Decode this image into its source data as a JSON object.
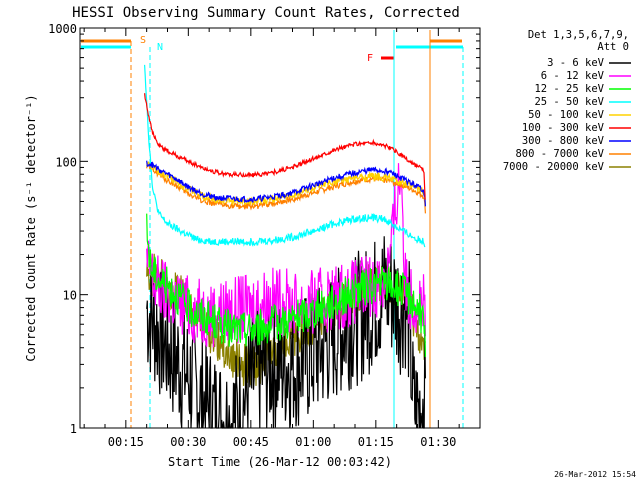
{
  "chart_data": {
    "type": "line",
    "title": "HESSI Observing Summary Count Rates, Corrected",
    "xlabel": "Start Time (26-Mar-12 00:03:42)",
    "ylabel": "Corrected Count Rate (s⁻¹ detector⁻¹)",
    "y_scale": "log",
    "ylim": [
      1,
      1000
    ],
    "xlim_min": [
      4,
      100
    ],
    "x_ticks": [
      {
        "min": 15,
        "label": "00:15"
      },
      {
        "min": 30,
        "label": "00:30"
      },
      {
        "min": 45,
        "label": "00:45"
      },
      {
        "min": 60,
        "label": "01:00"
      },
      {
        "min": 75,
        "label": "01:15"
      },
      {
        "min": 90,
        "label": "01:30"
      }
    ],
    "y_ticks": [
      {
        "v": 1,
        "label": "1"
      },
      {
        "v": 10,
        "label": "10"
      },
      {
        "v": 100,
        "label": "100"
      },
      {
        "v": 1000,
        "label": "1000"
      }
    ],
    "legend_header": [
      "Det 1,3,5,6,7,9,",
      "Att 0"
    ],
    "series": [
      {
        "name": "3 - 6 keV",
        "color": "#000000",
        "x": [
          20,
          22,
          25,
          28,
          31,
          34,
          37,
          40,
          43,
          46,
          50,
          55,
          60,
          64,
          68,
          72,
          75,
          77,
          79,
          81,
          82,
          83,
          84,
          85,
          86,
          87
        ],
        "y": [
          8,
          6,
          4,
          3,
          2.2,
          1.5,
          1.2,
          1.1,
          1.5,
          2.5,
          3,
          3,
          3.5,
          4.5,
          6,
          7,
          9,
          11,
          10,
          8,
          9,
          6,
          1.5,
          1.3,
          1.5,
          1.8
        ]
      },
      {
        "name": "6 - 12 keV",
        "color": "#ff00ff",
        "x": [
          20,
          22,
          25,
          28,
          32,
          36,
          40,
          44,
          48,
          52,
          56,
          60,
          64,
          68,
          72,
          75,
          77,
          78.5,
          79.5,
          80.5,
          81.2,
          82,
          83,
          85,
          86.5,
          87
        ],
        "y": [
          17,
          12,
          10,
          8.5,
          7.5,
          7.2,
          7.5,
          8,
          9,
          9,
          8.5,
          8.5,
          9.5,
          10,
          11,
          12,
          13,
          20,
          40,
          70,
          75,
          12,
          10,
          9,
          8.5,
          4
        ]
      },
      {
        "name": "12 - 25 keV",
        "color": "#00ff00",
        "x": [
          20,
          21,
          23,
          26,
          30,
          35,
          40,
          45,
          50,
          55,
          60,
          65,
          70,
          75,
          78,
          81,
          84,
          86.5,
          87
        ],
        "y": [
          30,
          16,
          13,
          11,
          8,
          6.5,
          5.5,
          5.5,
          6,
          6.5,
          7.5,
          9,
          10.5,
          12,
          12,
          11,
          9,
          6.5,
          3
        ]
      },
      {
        "name": "25 - 50 keV",
        "color": "#00ffff",
        "x": [
          19.5,
          20.5,
          21.5,
          23,
          25,
          28,
          32,
          36,
          40,
          45,
          50,
          55,
          60,
          65,
          70,
          74,
          77,
          80,
          84,
          86.5,
          87
        ],
        "y": [
          550,
          150,
          60,
          40,
          34,
          30,
          26,
          25,
          25,
          25,
          25.5,
          27,
          30,
          34,
          37,
          38,
          37,
          32,
          27,
          25,
          23
        ]
      },
      {
        "name": "50 - 100 keV",
        "color": "#ffd200",
        "x": [
          20,
          21.5,
          24,
          27,
          30,
          34,
          38,
          42,
          46,
          50,
          55,
          60,
          65,
          70,
          74,
          78,
          81,
          84,
          86.5,
          87
        ],
        "y": [
          95,
          90,
          80,
          72,
          62,
          54,
          51,
          50,
          50,
          52,
          56,
          63,
          70,
          75,
          77,
          75,
          70,
          64,
          60,
          45
        ]
      },
      {
        "name": "100 - 300 keV",
        "color": "#ff0000",
        "x": [
          19.5,
          20.5,
          21.5,
          23,
          26,
          30,
          34,
          38,
          42,
          46,
          50,
          55,
          60,
          65,
          70,
          74,
          77,
          80,
          82,
          84,
          86.5,
          87
        ],
        "y": [
          320,
          220,
          160,
          130,
          115,
          100,
          88,
          81,
          79,
          79,
          82,
          90,
          105,
          122,
          135,
          138,
          132,
          118,
          105,
          95,
          86,
          40
        ]
      },
      {
        "name": "300 - 800 keV",
        "color": "#0000ff",
        "x": [
          20,
          21.5,
          24,
          27,
          30,
          34,
          38,
          42,
          46,
          50,
          55,
          60,
          65,
          70,
          74,
          78,
          81,
          84,
          86.5,
          87
        ],
        "y": [
          97,
          93,
          83,
          74,
          64,
          56,
          53,
          52,
          52,
          54,
          58,
          66,
          75,
          82,
          86,
          84,
          75,
          67,
          61,
          45
        ]
      },
      {
        "name": "800 - 7000 keV",
        "color": "#ff8000",
        "x": [
          20,
          21.5,
          24,
          27,
          30,
          34,
          38,
          42,
          46,
          50,
          55,
          60,
          65,
          70,
          74,
          78,
          81,
          84,
          86.5,
          87
        ],
        "y": [
          92,
          88,
          75,
          66,
          57,
          50,
          47,
          46,
          46,
          48,
          52,
          58,
          65,
          71,
          74,
          72,
          67,
          61,
          55,
          40
        ]
      },
      {
        "name": "7000 - 20000 keV",
        "color": "#8b8000",
        "x": [
          20,
          22,
          25,
          28,
          31,
          34,
          37,
          40,
          43,
          46,
          50,
          54,
          58,
          62,
          66,
          70,
          73,
          76,
          79,
          82,
          85,
          87
        ],
        "y": [
          15,
          14,
          12,
          10,
          8,
          6,
          4.5,
          3.5,
          3,
          3,
          3.5,
          4.5,
          5.5,
          7,
          8.5,
          10,
          11.5,
          12,
          11,
          9.5,
          6,
          3
        ]
      }
    ],
    "markers": [
      {
        "label": "S",
        "color": "#ff8000"
      },
      {
        "label": "N",
        "color": "#00ffff"
      },
      {
        "label": "F",
        "color": "#ff0000"
      }
    ],
    "timestamp": "26-Mar-2012 15:54"
  }
}
